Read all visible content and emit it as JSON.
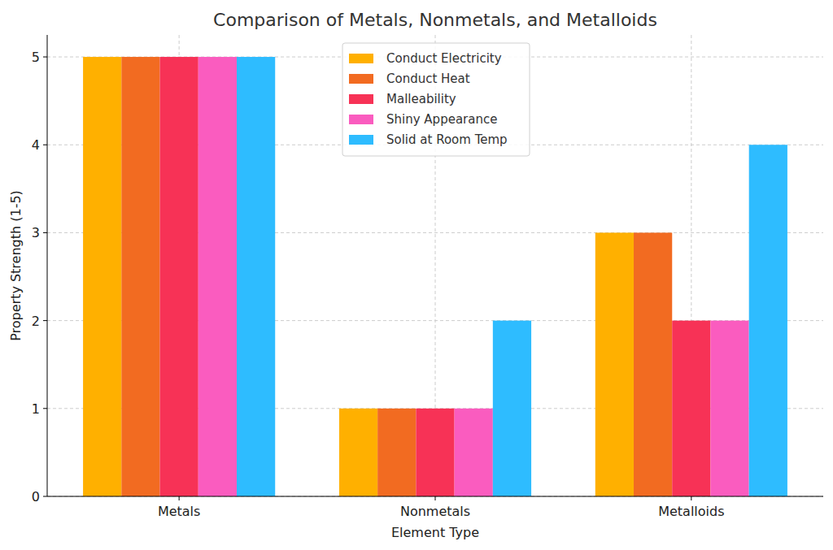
{
  "chart_data": {
    "type": "bar",
    "title": "Comparison of Metals, Nonmetals, and Metalloids",
    "x_label": "Element Type",
    "y_label": "Property Strength (1-5)",
    "categories": [
      "Metals",
      "Nonmetals",
      "Metalloids"
    ],
    "series": [
      {
        "name": "Conduct Electricity",
        "color": "#ffb000",
        "values": [
          5,
          1,
          3
        ]
      },
      {
        "name": "Conduct Heat",
        "color": "#f26b21",
        "values": [
          5,
          1,
          3
        ]
      },
      {
        "name": "Malleability",
        "color": "#f73256",
        "values": [
          5,
          1,
          2
        ]
      },
      {
        "name": "Shiny Appearance",
        "color": "#fa5cbf",
        "values": [
          5,
          1,
          2
        ]
      },
      {
        "name": "Solid at Room Temp",
        "color": "#2ebcff",
        "values": [
          5,
          2,
          4
        ]
      }
    ],
    "ylim": [
      0,
      5.25
    ],
    "yticks": [
      0,
      1,
      2,
      3,
      4,
      5
    ],
    "grid": true,
    "legend": "top"
  }
}
